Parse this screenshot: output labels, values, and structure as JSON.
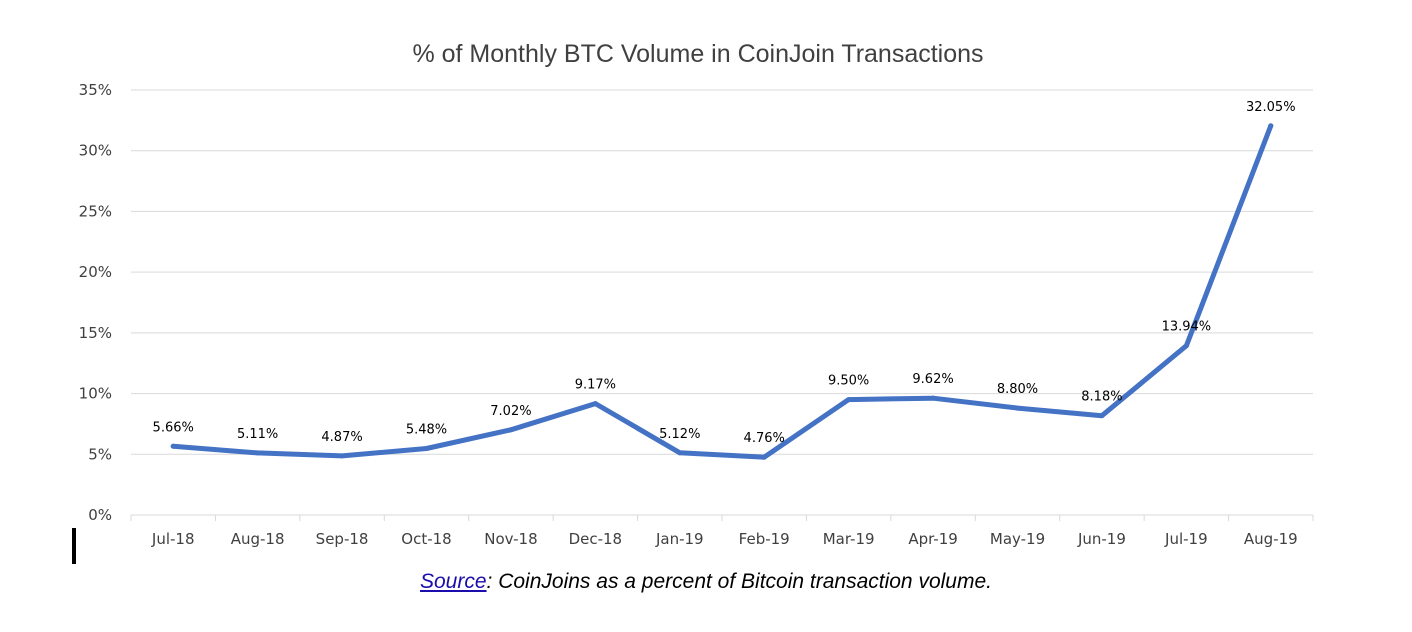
{
  "chart_data": {
    "type": "line",
    "title": "% of Monthly BTC Volume in CoinJoin Transactions",
    "categories": [
      "Jul-18",
      "Aug-18",
      "Sep-18",
      "Oct-18",
      "Nov-18",
      "Dec-18",
      "Jan-19",
      "Feb-19",
      "Mar-19",
      "Apr-19",
      "May-19",
      "Jun-19",
      "Jul-19",
      "Aug-19"
    ],
    "series": [
      {
        "name": "% of Monthly BTC Volume in CoinJoin Transactions",
        "values": [
          5.66,
          5.11,
          4.87,
          5.48,
          7.02,
          9.17,
          5.12,
          4.76,
          9.5,
          9.62,
          8.8,
          8.18,
          13.94,
          32.05
        ],
        "labels": [
          "5.66%",
          "5.11%",
          "4.87%",
          "5.48%",
          "7.02%",
          "9.17%",
          "5.12%",
          "4.76%",
          "9.50%",
          "9.62%",
          "8.80%",
          "8.18%",
          "13.94%",
          "32.05%"
        ],
        "color": "#4472c4"
      }
    ],
    "yticks": [
      0,
      5,
      10,
      15,
      20,
      25,
      30,
      35
    ],
    "ytick_labels": [
      "0%",
      "5%",
      "10%",
      "15%",
      "20%",
      "25%",
      "30%",
      "35%"
    ],
    "ylim": [
      0,
      35
    ],
    "xlabel": "",
    "ylabel": "",
    "grid": true
  },
  "caption": {
    "link_text": "Source",
    "text": ": CoinJoins as a percent of Bitcoin transaction volume."
  }
}
